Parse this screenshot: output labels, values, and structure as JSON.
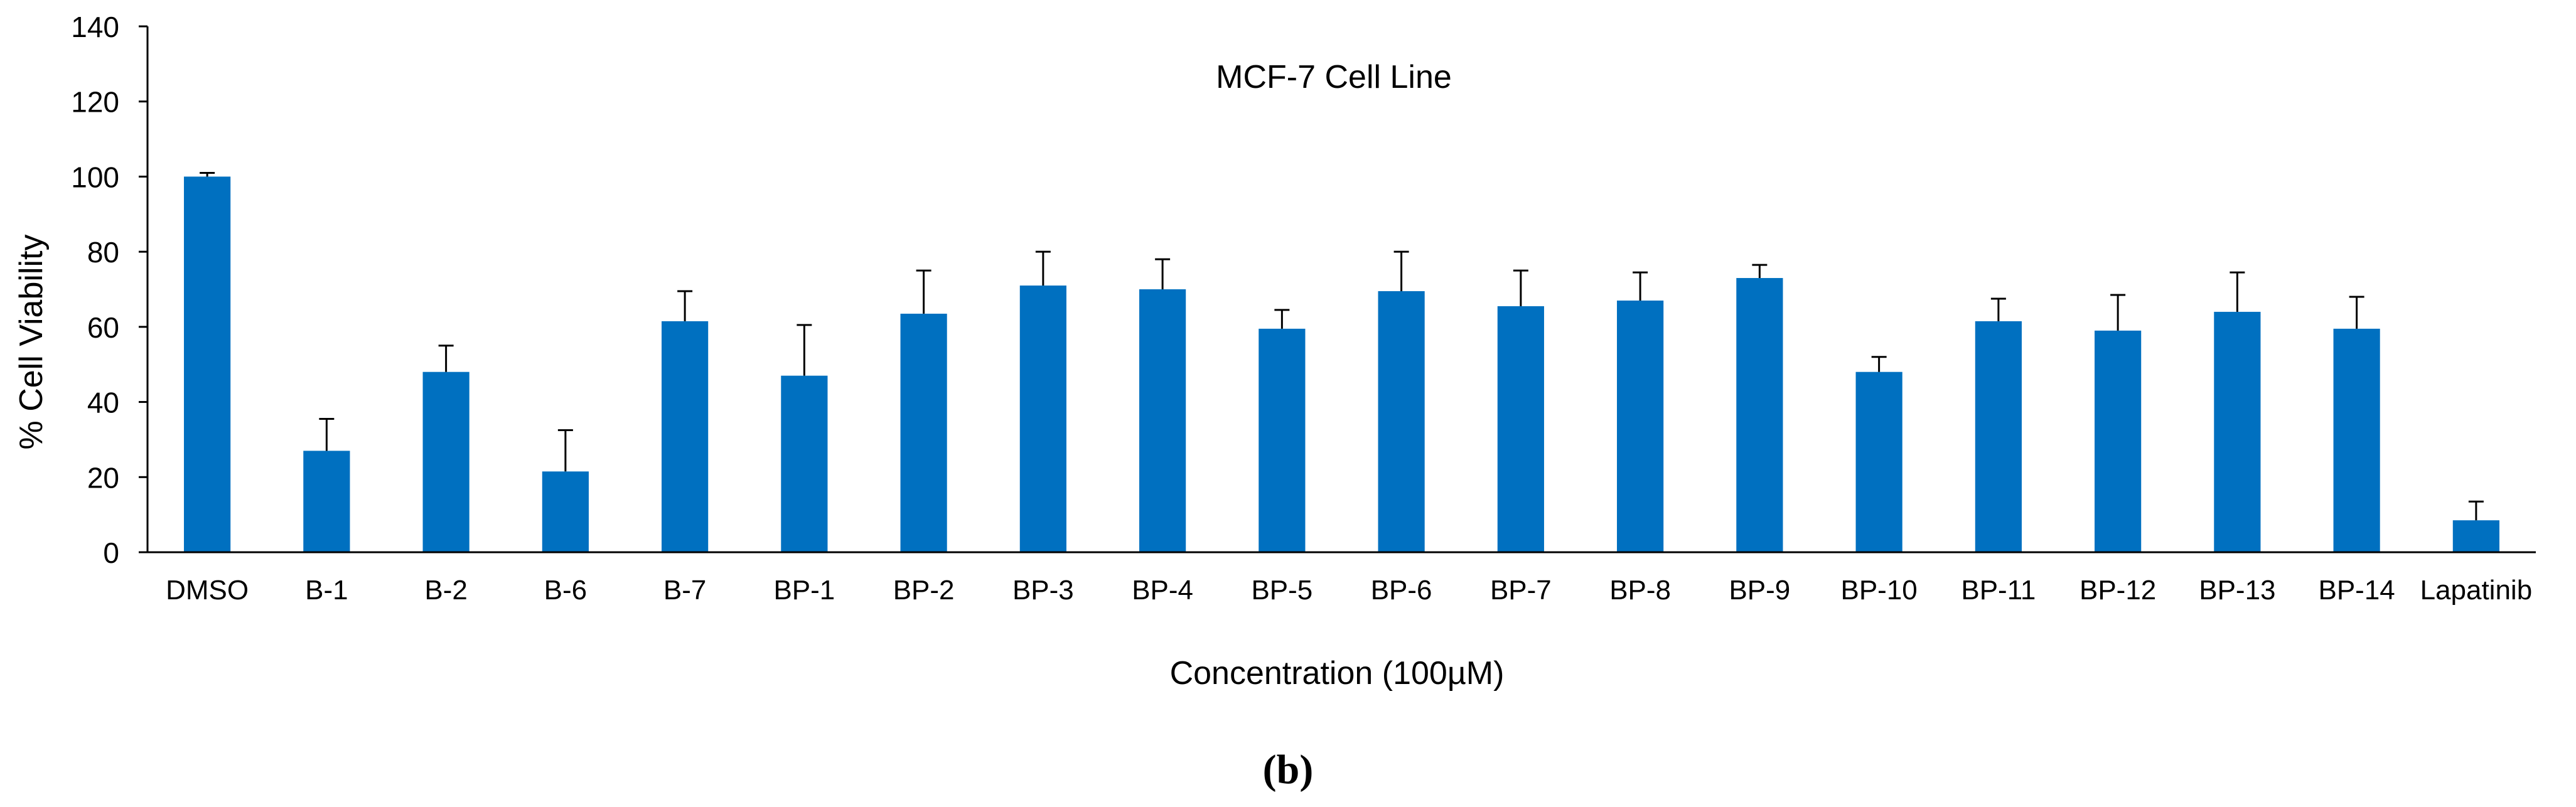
{
  "chart_data": {
    "type": "bar",
    "title": "MCF-7 Cell Line",
    "xlabel": "Concentration (100µM)",
    "ylabel": "% Cell Viability",
    "ylim": [
      0,
      140
    ],
    "yticks": [
      0,
      20,
      40,
      60,
      80,
      100,
      120,
      140
    ],
    "grid": false,
    "bar_color": "#0070C0",
    "categories": [
      "DMSO",
      "B-1",
      "B-2",
      "B-6",
      "B-7",
      "BP-1",
      "BP-2",
      "BP-3",
      "BP-4",
      "BP-5",
      "BP-6",
      "BP-7",
      "BP-8",
      "BP-9",
      "BP-10",
      "BP-11",
      "BP-12",
      "BP-13",
      "BP-14",
      "Lapatinib"
    ],
    "values": [
      100,
      27,
      48,
      21.5,
      61.5,
      47,
      63.5,
      71,
      70,
      59.5,
      69.5,
      65.5,
      67,
      73,
      48,
      61.5,
      59,
      64,
      59.5,
      8.5
    ],
    "error_upper": [
      1,
      8.5,
      7,
      11,
      8,
      13.5,
      11.5,
      9,
      8,
      5,
      10.5,
      9.5,
      7.5,
      3.5,
      4,
      6,
      9.5,
      10.5,
      8.5,
      5
    ]
  },
  "panel_label": "(b)"
}
